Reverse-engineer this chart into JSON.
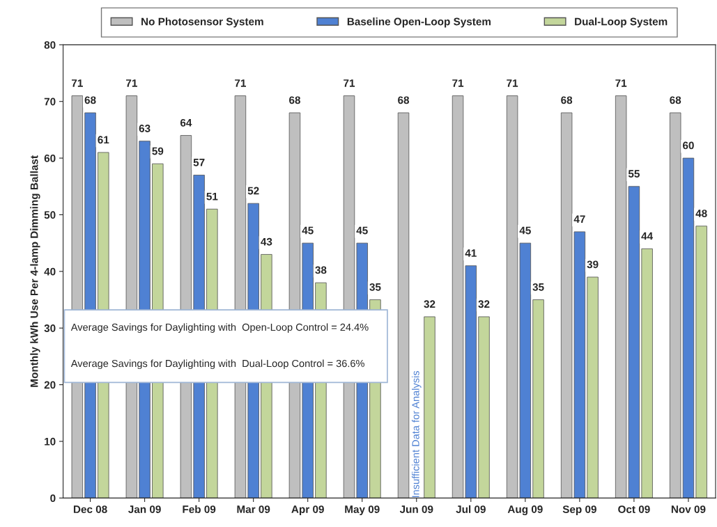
{
  "chart_data": {
    "type": "bar",
    "ylabel": "Monthly kWh Use Per 4-lamp Dimming Ballast",
    "categories": [
      "Dec 08",
      "Jan 09",
      "Feb 09",
      "Mar 09",
      "Apr 09",
      "May 09",
      "Jun 09",
      "Jul 09",
      "Aug 09",
      "Sep 09",
      "Oct 09",
      "Nov 09"
    ],
    "series": [
      {
        "name": "No Photosensor System",
        "color": "#bfbfbf",
        "values": [
          71,
          71,
          64,
          71,
          68,
          71,
          68,
          71,
          71,
          68,
          71,
          68
        ]
      },
      {
        "name": "Baseline Open-Loop System",
        "color": "#4f81d3",
        "values": [
          68,
          63,
          57,
          52,
          45,
          45,
          null,
          41,
          45,
          47,
          55,
          60
        ]
      },
      {
        "name": "Dual-Loop System",
        "color": "#c3d69b",
        "values": [
          61,
          59,
          51,
          43,
          38,
          35,
          32,
          32,
          35,
          39,
          44,
          48
        ]
      }
    ],
    "ylim": [
      0,
      80
    ],
    "yticks": [
      0,
      10,
      20,
      30,
      40,
      50,
      60,
      70,
      80
    ],
    "data_labels": true,
    "grid": false,
    "legend": "top",
    "annotations": [
      "Average Savings for Daylighting with  Open-Loop Control = 24.4%",
      "Average Savings for Daylighting with  Dual-Loop Control = 36.6%",
      "Insufficient Data for Analysis"
    ]
  }
}
